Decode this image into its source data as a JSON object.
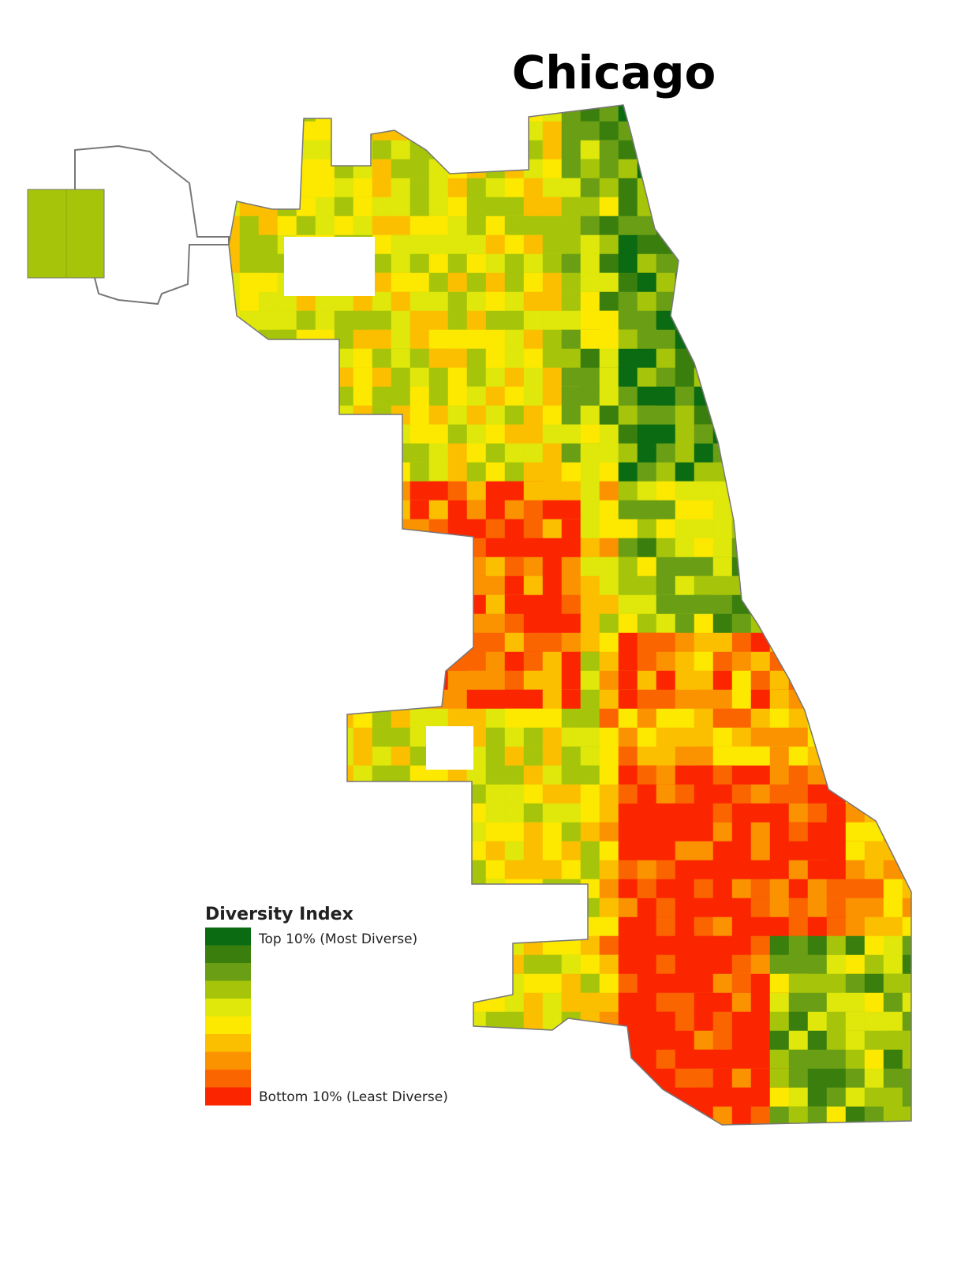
{
  "title": "Chicago",
  "legend": {
    "title": "Diversity Index",
    "colors": [
      "#0b6b12",
      "#3a7f0e",
      "#6a9e14",
      "#a6c40a",
      "#dfe70b",
      "#fde800",
      "#fbbf00",
      "#fb9200",
      "#fb6500",
      "#fb2600"
    ],
    "top_label": "Top 10% (Most Diverse)",
    "bottom_label": "Bottom 10% (Least Diverse)"
  }
}
